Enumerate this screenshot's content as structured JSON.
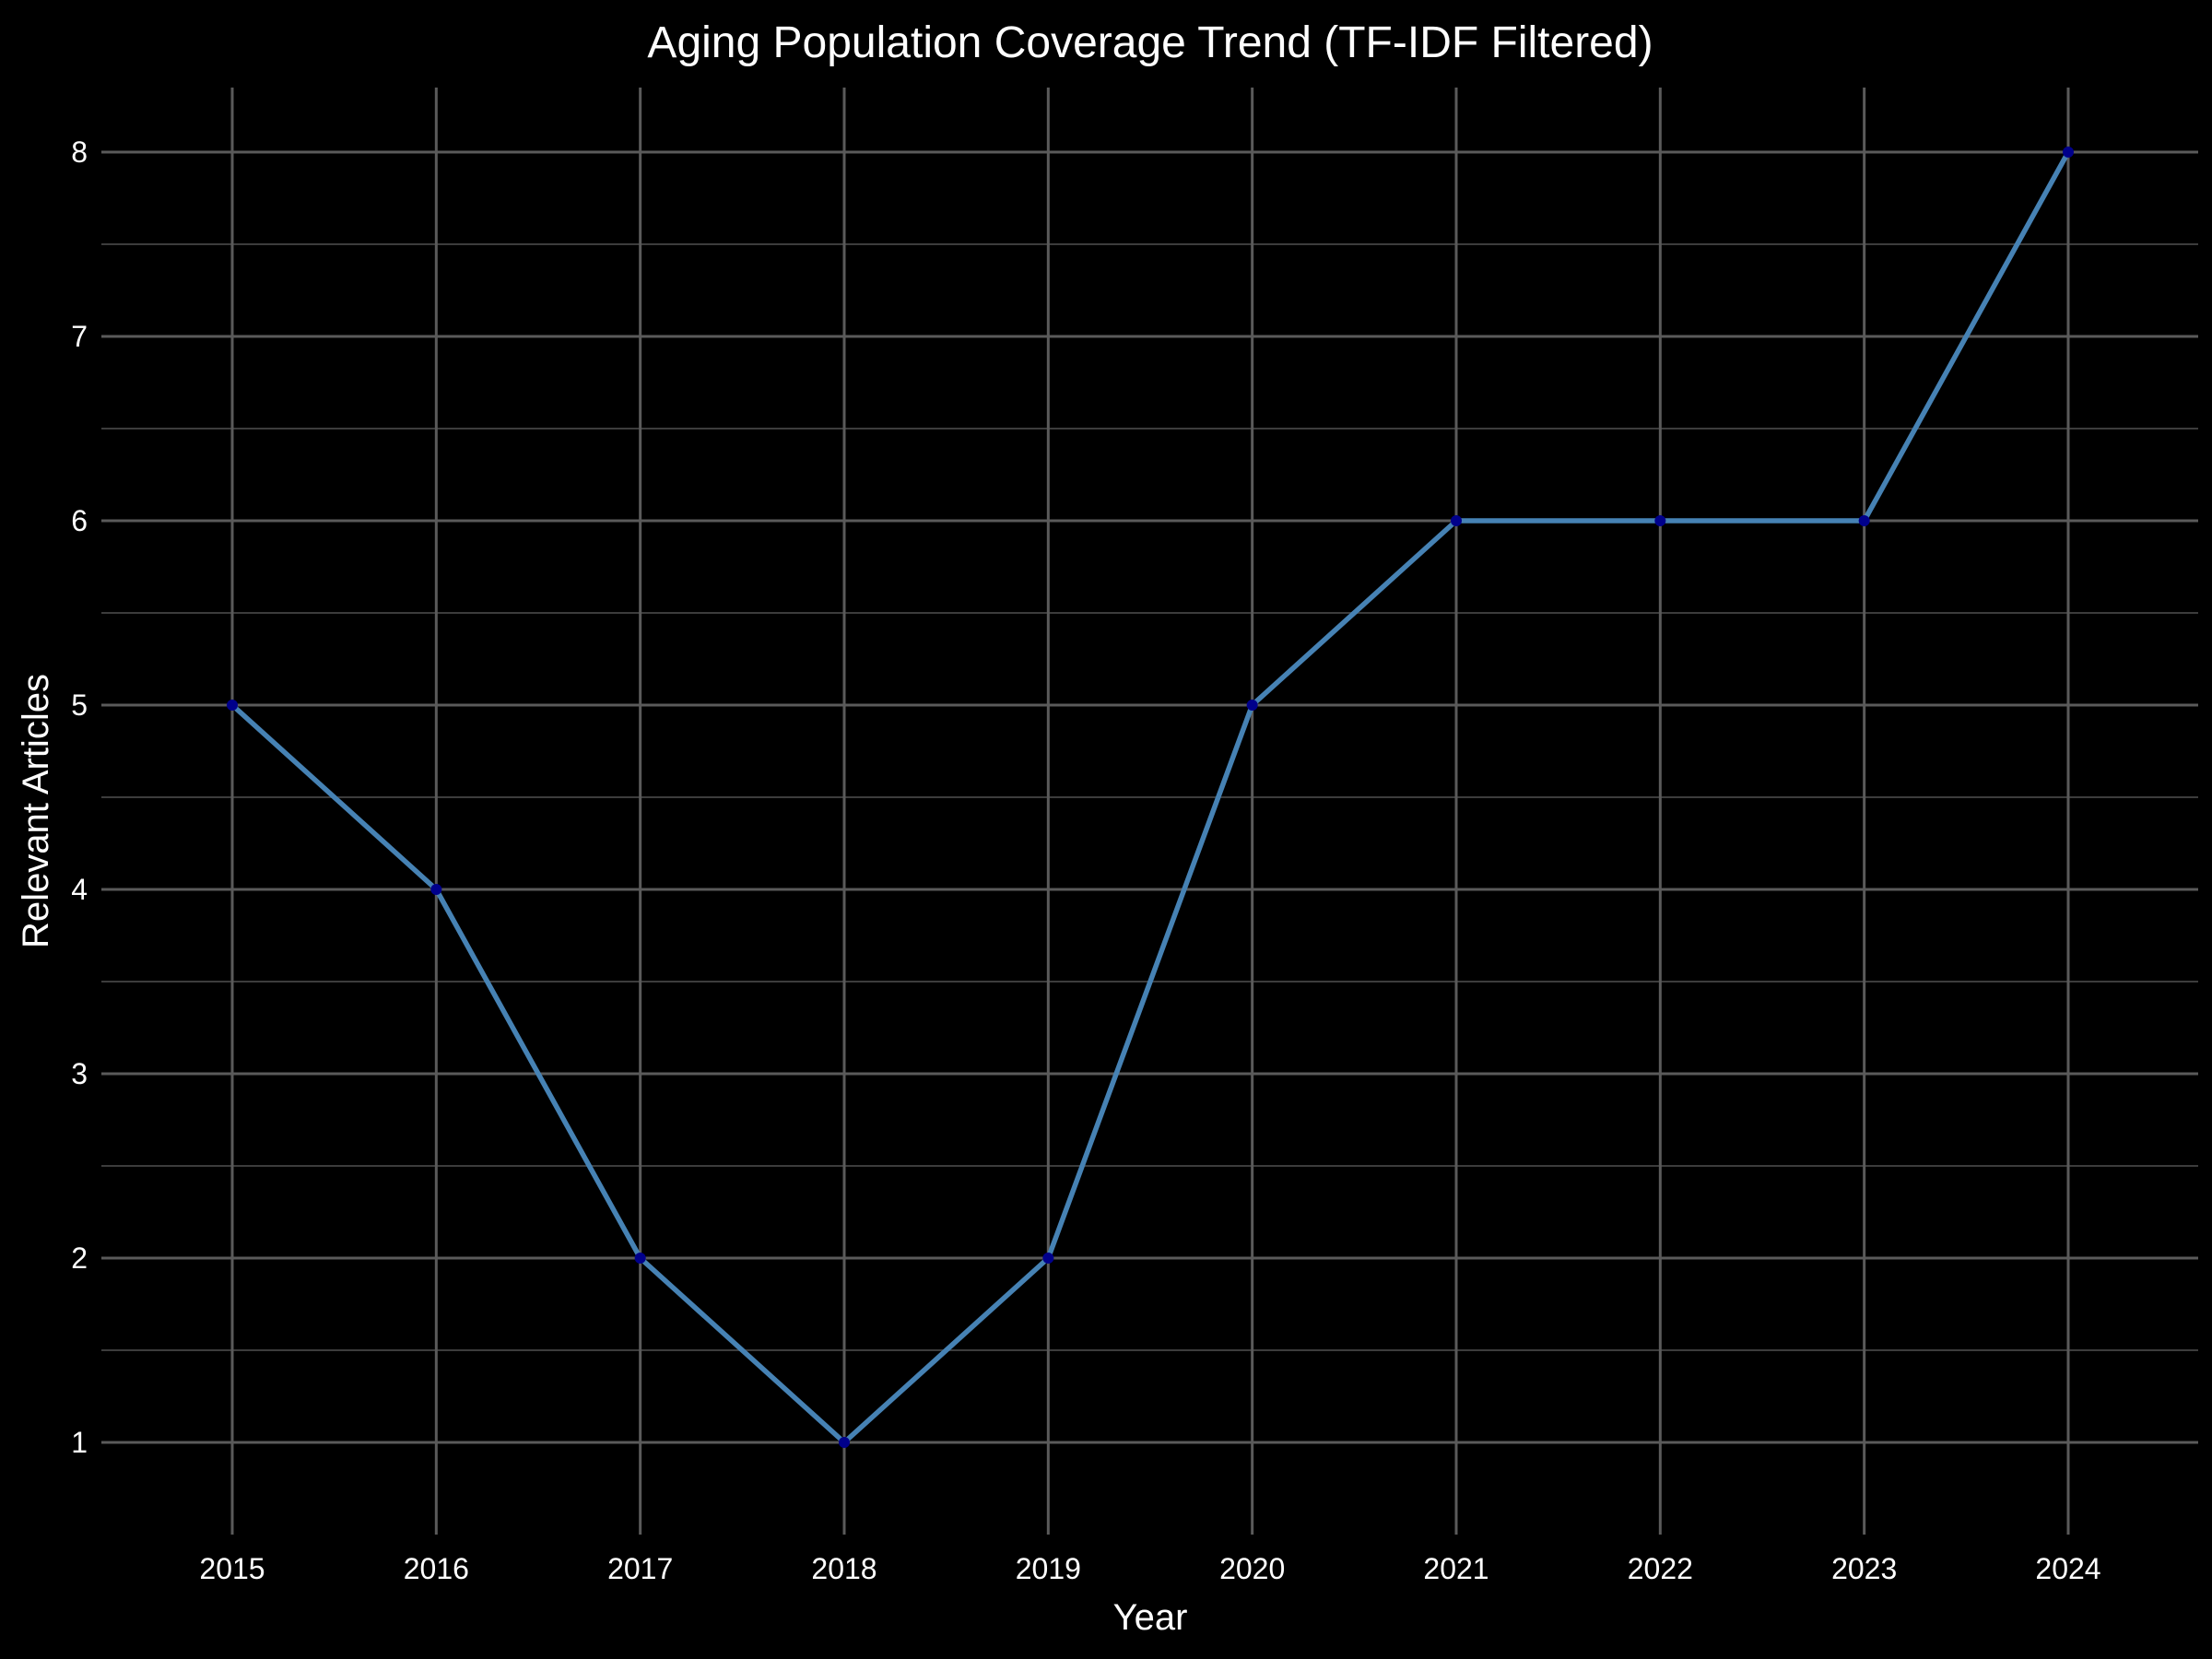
{
  "chart_data": {
    "type": "line",
    "title": "Aging Population Coverage Trend (TF-IDF Filtered)",
    "xlabel": "Year",
    "ylabel": "Relevant Articles",
    "x": [
      "2015",
      "2016",
      "2017",
      "2018",
      "2019",
      "2020",
      "2021",
      "2022",
      "2023",
      "2024"
    ],
    "y_ticks": [
      "1",
      "2",
      "3",
      "4",
      "5",
      "6",
      "7",
      "8"
    ],
    "series": [
      {
        "values": [
          5,
          4,
          2,
          1,
          2,
          5,
          6,
          6,
          6,
          8
        ]
      }
    ],
    "ylim": [
      0.5,
      8.35
    ],
    "grid": true,
    "legend": "none",
    "colors": {
      "background": "#000000",
      "line": "#4682b4",
      "point": "#00008b",
      "text": "#ffffff",
      "grid_major": "#5a5a5a",
      "grid_minor": "#3c3c3c"
    }
  }
}
